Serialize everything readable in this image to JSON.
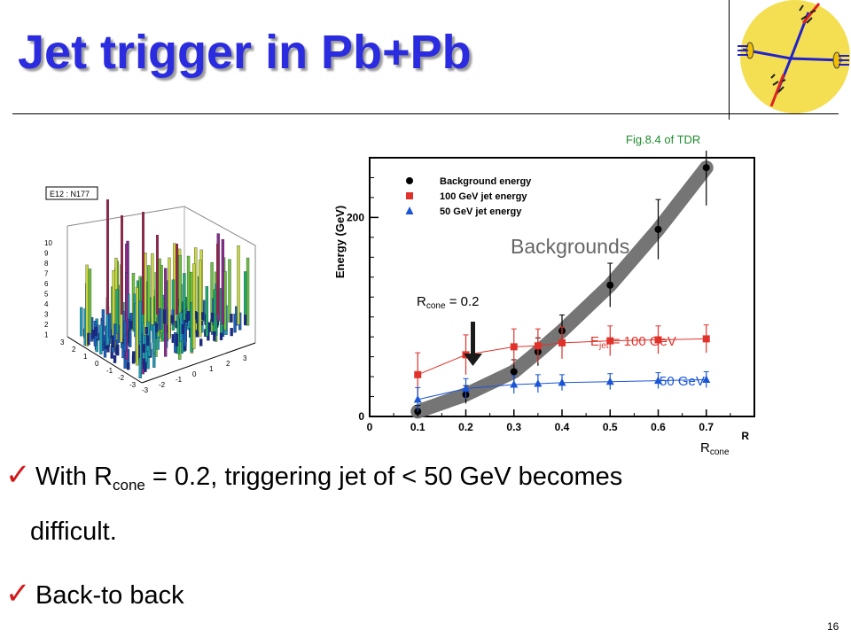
{
  "slide": {
    "title": "Jet trigger in Pb+Pb",
    "fig_ref": "Fig.8.4  of TDR",
    "page_number": "16"
  },
  "lego": {
    "label": "E12 : N177",
    "z_ticks": [
      "10",
      "9",
      "8",
      "7",
      "6",
      "5",
      "4",
      "3",
      "2",
      "1"
    ],
    "x_ticks": [
      "-3",
      "-2",
      "-1",
      "0",
      "1",
      "2",
      "3"
    ],
    "y_ticks": [
      "3",
      "2",
      "1",
      "0",
      "-1",
      "-2",
      "-3"
    ]
  },
  "chart_data": {
    "type": "scatter",
    "xlabel": "R",
    "ylabel": "Energy (GeV)",
    "xlim": [
      0,
      0.8
    ],
    "ylim": [
      0,
      260
    ],
    "x_ticks": [
      "0",
      "0.1",
      "0.2",
      "0.3",
      "0.4",
      "0.5",
      "0.6",
      "0.7"
    ],
    "y_ticks": [
      "0",
      "200"
    ],
    "legend": [
      "Background energy",
      "100 GeV jet energy",
      "50 GeV jet energy"
    ],
    "series": [
      {
        "name": "Background energy",
        "color": "#000000",
        "marker": "circle",
        "x": [
          0.1,
          0.2,
          0.3,
          0.35,
          0.4,
          0.5,
          0.6,
          0.7
        ],
        "y": [
          5,
          22,
          45,
          65,
          86,
          132,
          188,
          250
        ],
        "err": [
          6,
          9,
          12,
          14,
          16,
          22,
          30,
          38
        ]
      },
      {
        "name": "100 GeV jet energy",
        "color": "#e0322b",
        "marker": "square",
        "x": [
          0.1,
          0.2,
          0.3,
          0.35,
          0.4,
          0.5,
          0.6,
          0.7
        ],
        "y": [
          42,
          62,
          70,
          71,
          74,
          76,
          77,
          78
        ],
        "err": [
          22,
          20,
          18,
          17,
          16,
          15,
          14,
          14
        ]
      },
      {
        "name": "50 GeV jet energy",
        "color": "#1a55d6",
        "marker": "triangle",
        "x": [
          0.1,
          0.2,
          0.3,
          0.35,
          0.4,
          0.5,
          0.6,
          0.7
        ],
        "y": [
          17,
          28,
          32,
          33,
          34,
          35,
          36,
          37
        ],
        "err": [
          12,
          10,
          9,
          9,
          8,
          8,
          8,
          8
        ]
      }
    ],
    "annotations": {
      "backgrounds": "Backgrounds",
      "rcone_prefix": "R",
      "rcone_sub": "cone",
      "rcone_value": " = 0.2",
      "ejet_prefix": "E",
      "ejet_sub": "jet",
      "ejet_value": " = 100 GeV",
      "fifty": "50 GeV",
      "axis_label": "R",
      "axis_sub": "cone"
    }
  },
  "bullets": [
    {
      "pre": "With R",
      "sub": "cone",
      "post": " = 0.2, triggering jet of < 50 GeV becomes",
      "line2": "difficult."
    },
    {
      "pre": "Back-to back",
      "sub": "",
      "post": "",
      "line2": ""
    }
  ],
  "colors": {
    "title": "#2b2be0",
    "check": "#d21a1a",
    "band": "#6e6e6e",
    "fig_ref": "#1e8c2e"
  },
  "icons": {
    "check": "✓",
    "logo": "jet-collision-logo"
  }
}
